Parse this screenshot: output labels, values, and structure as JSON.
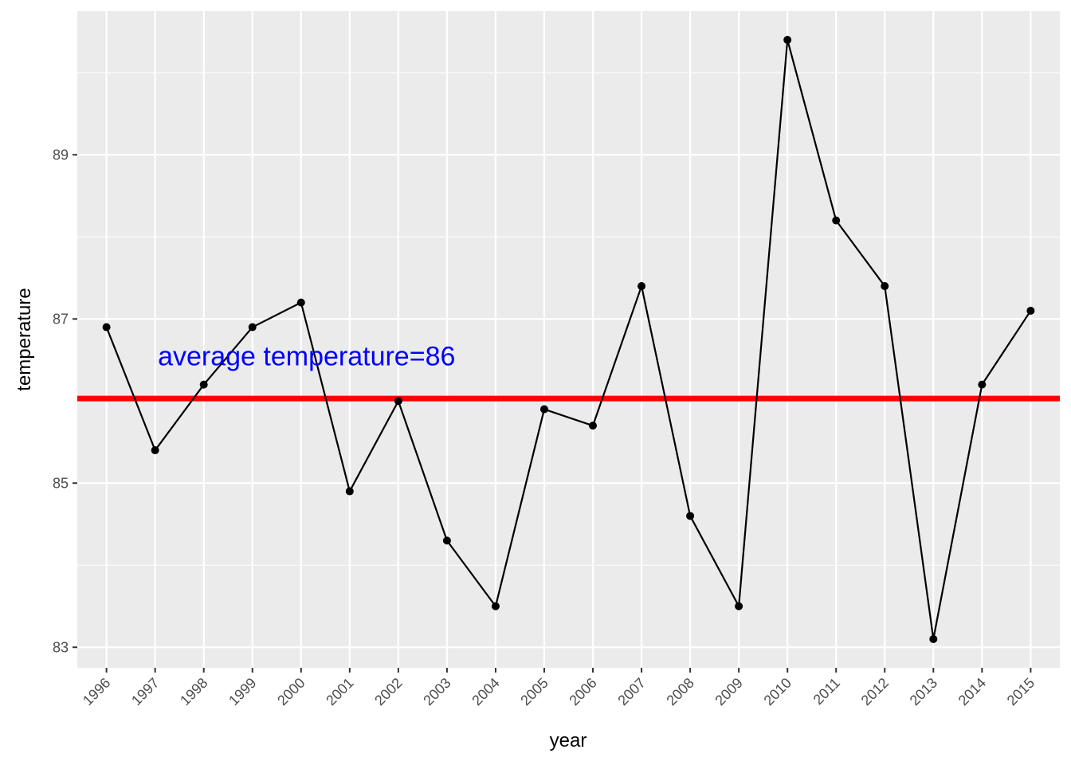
{
  "chart_data": {
    "type": "line",
    "title": "",
    "xlabel": "year",
    "ylabel": "temperature",
    "categories": [
      "1996",
      "1997",
      "1998",
      "1999",
      "2000",
      "2001",
      "2002",
      "2003",
      "2004",
      "2005",
      "2006",
      "2007",
      "2008",
      "2009",
      "2010",
      "2011",
      "2012",
      "2013",
      "2014",
      "2015"
    ],
    "series": [
      {
        "values": [
          86.9,
          85.4,
          86.2,
          86.9,
          87.2,
          84.9,
          86.0,
          84.3,
          83.5,
          85.9,
          85.7,
          87.4,
          84.6,
          83.5,
          90.4,
          88.2,
          87.4,
          83.1,
          86.2,
          87.1
        ],
        "color": "#000000"
      }
    ],
    "ylim": [
      82.75,
      90.75
    ],
    "yticks": [
      83,
      85,
      87,
      89
    ],
    "grid": true,
    "reference_line": {
      "y": 86.03,
      "color": "#ff0000"
    },
    "annotation": {
      "text": "average temperature=86",
      "color": "#0000ff",
      "anchor_x": "1999",
      "y": 86.55
    },
    "panel_background": "#ebebeb",
    "grid_color": "#ffffff"
  }
}
